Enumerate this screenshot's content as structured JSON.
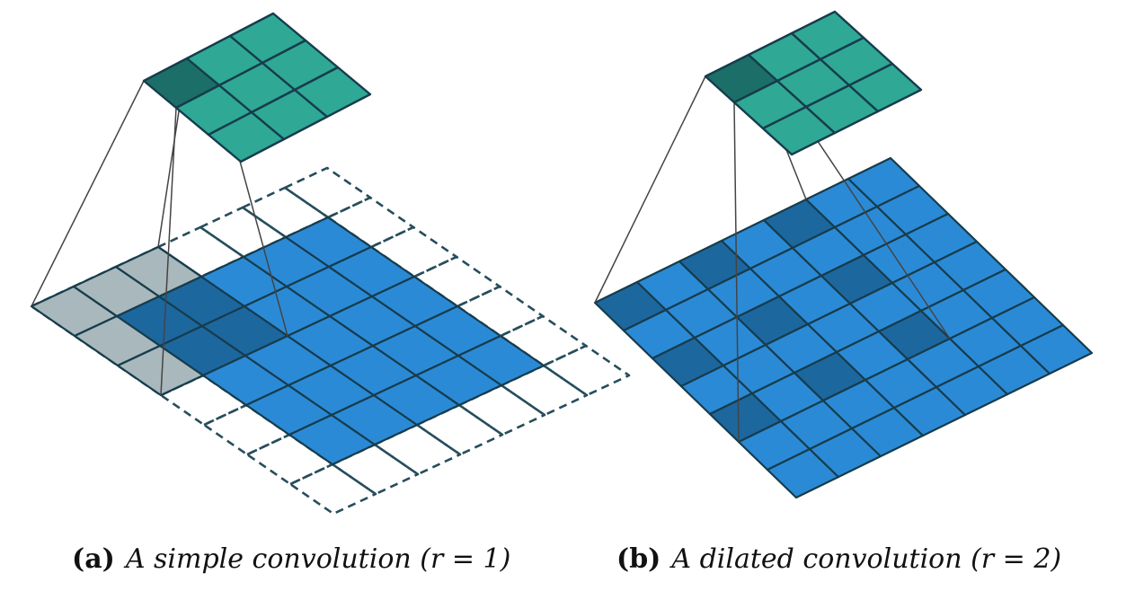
{
  "colors": {
    "background": "#ffffff",
    "output_fill": "#2fa896",
    "output_highlight": "#1b6f68",
    "input_fill": "#2b8ad6",
    "input_highlight": "#1d679f",
    "padding_dashed_stroke": "#264d5c",
    "kernel_overhang_fill": "#9fb0b5",
    "grid_stroke": "#163c4c",
    "projection_line": "#444444"
  },
  "panels": [
    {
      "id": "a",
      "label": "(a)",
      "caption": "A simple convolution (r = 1)",
      "output_grid": {
        "rows": 3,
        "cols": 3,
        "highlighted_cells": [
          [
            0,
            0
          ]
        ]
      },
      "input_grid": {
        "rows": 5,
        "cols": 5,
        "padding": 1,
        "padding_style": "dashed"
      },
      "kernel": {
        "size": 3,
        "dilation": 1
      }
    },
    {
      "id": "b",
      "label": "(b)",
      "caption": "A dilated convolution (r = 2)",
      "output_grid": {
        "rows": 3,
        "cols": 3,
        "highlighted_cells": [
          [
            0,
            0
          ]
        ]
      },
      "input_grid": {
        "rows": 7,
        "cols": 7,
        "padding": 0,
        "padding_style": "none"
      },
      "kernel": {
        "size": 3,
        "dilation": 2
      }
    }
  ]
}
